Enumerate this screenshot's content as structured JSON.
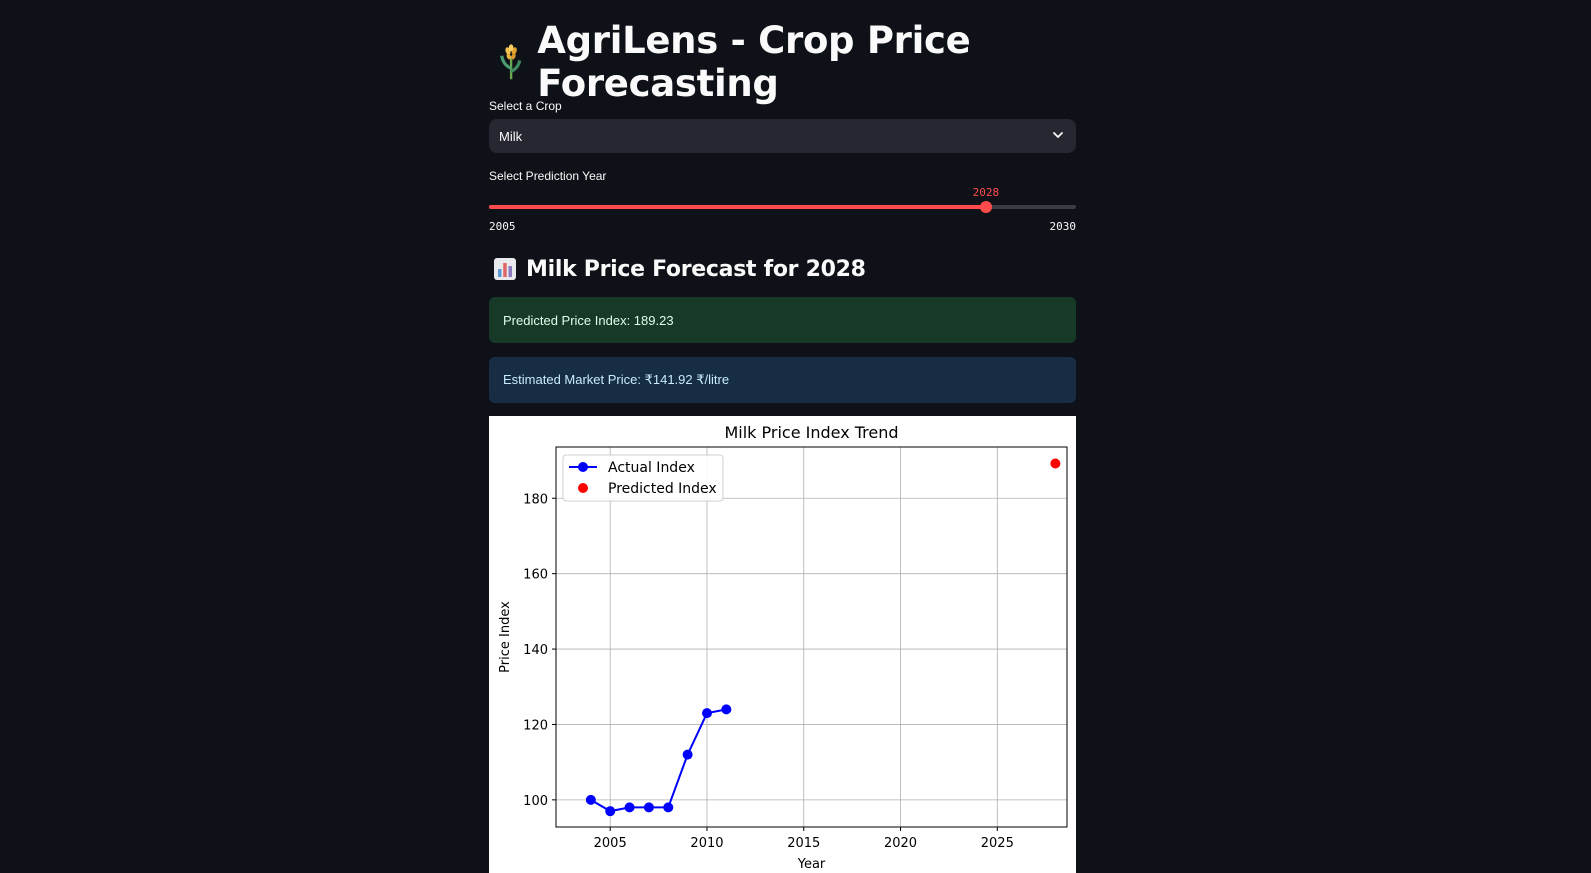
{
  "header": {
    "title": "AgriLens - Crop Price Forecasting",
    "icon": "wheat-icon"
  },
  "crop_select": {
    "label": "Select a Crop",
    "value": "Milk",
    "icon": "chevron-down-icon"
  },
  "year_slider": {
    "label": "Select Prediction Year",
    "value": "2028",
    "min": "2005",
    "max": "2030",
    "value_num": 2028,
    "min_num": 2005,
    "max_num": 2030,
    "accent": "#ff4b4b"
  },
  "forecast": {
    "heading": "Milk Price Forecast for 2028",
    "icon": "bar-chart-icon",
    "predicted_index": "Predicted Price Index: 189.23",
    "market_price": "Estimated Market Price: ₹141.92 ₹/litre"
  },
  "chart_data": {
    "type": "line",
    "title": "Milk Price Index Trend",
    "xlabel": "Year",
    "ylabel": "Price Index",
    "xlim": [
      2002.2,
      2028.6
    ],
    "ylim": [
      92.8,
      193.6
    ],
    "xticks": [
      2005,
      2010,
      2015,
      2020,
      2025
    ],
    "yticks": [
      100,
      120,
      140,
      160,
      180
    ],
    "grid": true,
    "legend": "upper-left",
    "series": [
      {
        "name": "Actual Index",
        "color": "#0000ff",
        "x": [
          2004,
          2005,
          2006,
          2007,
          2008,
          2009,
          2010,
          2011
        ],
        "y": [
          100,
          97,
          98,
          98,
          98,
          112,
          123,
          124
        ]
      },
      {
        "name": "Predicted Index",
        "color": "#ff0000",
        "x": [
          2028
        ],
        "y": [
          189.23
        ]
      }
    ]
  }
}
